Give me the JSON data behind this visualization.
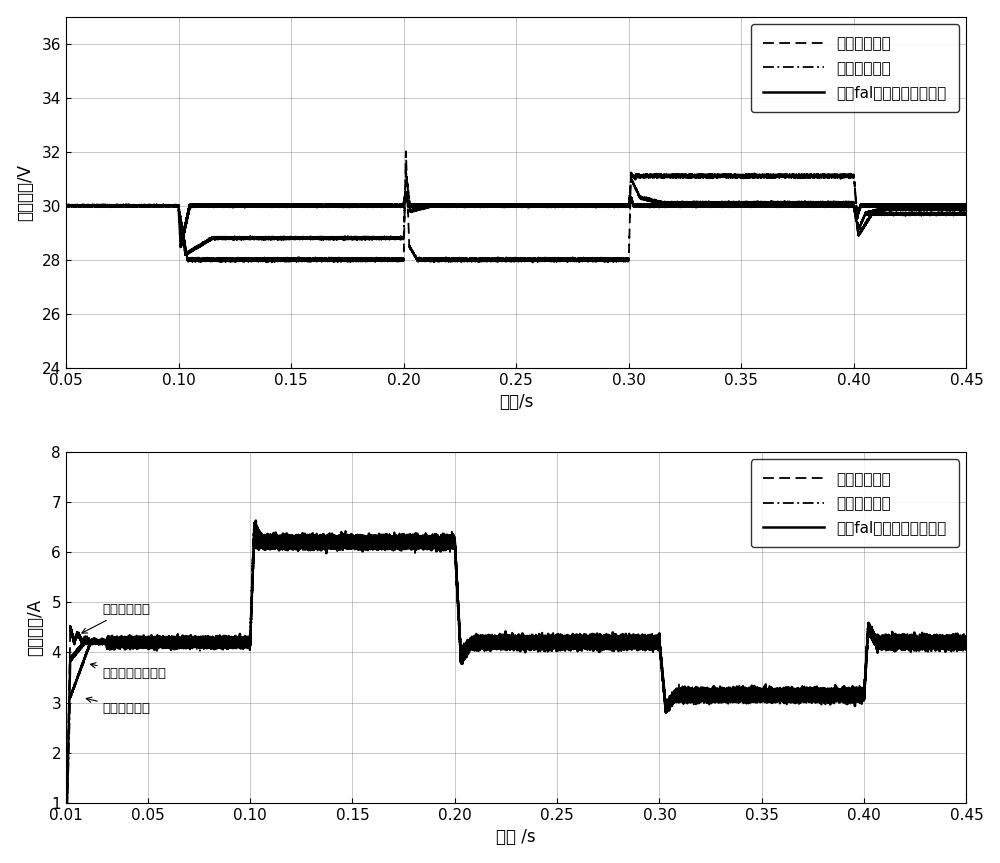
{
  "top_plot": {
    "xlim": [
      0.05,
      0.45
    ],
    "ylim": [
      24,
      37
    ],
    "yticks": [
      24,
      26,
      28,
      30,
      32,
      34,
      36
    ],
    "xticks": [
      0.05,
      0.1,
      0.15,
      0.2,
      0.25,
      0.3,
      0.35,
      0.4,
      0.45
    ],
    "xlabel": "时间/s",
    "ylabel": "输出电压/V",
    "legend_labels": [
      "传统无源控制",
      "积分无源控制",
      "基于fal函数积分无源控制"
    ]
  },
  "bottom_plot": {
    "xlim": [
      0.01,
      0.45
    ],
    "ylim": [
      1,
      8
    ],
    "yticks": [
      1,
      2,
      3,
      4,
      5,
      6,
      7,
      8
    ],
    "xticks": [
      0.01,
      0.05,
      0.1,
      0.15,
      0.2,
      0.25,
      0.3,
      0.35,
      0.4,
      0.45
    ],
    "xlabel": "时间 /s",
    "ylabel": "电感电流/A",
    "legend_labels": [
      "传统无源控制",
      "积分无源控制",
      "基于fal函数积分无源控制"
    ],
    "ann1_text": "传统无源控制",
    "ann2_text": "改进积分无源控制",
    "ann3_text": "积分无源控制"
  },
  "background_color": "#ffffff",
  "line_color": "black",
  "font_size": 11,
  "font_size_label": 12,
  "font_size_legend": 11
}
